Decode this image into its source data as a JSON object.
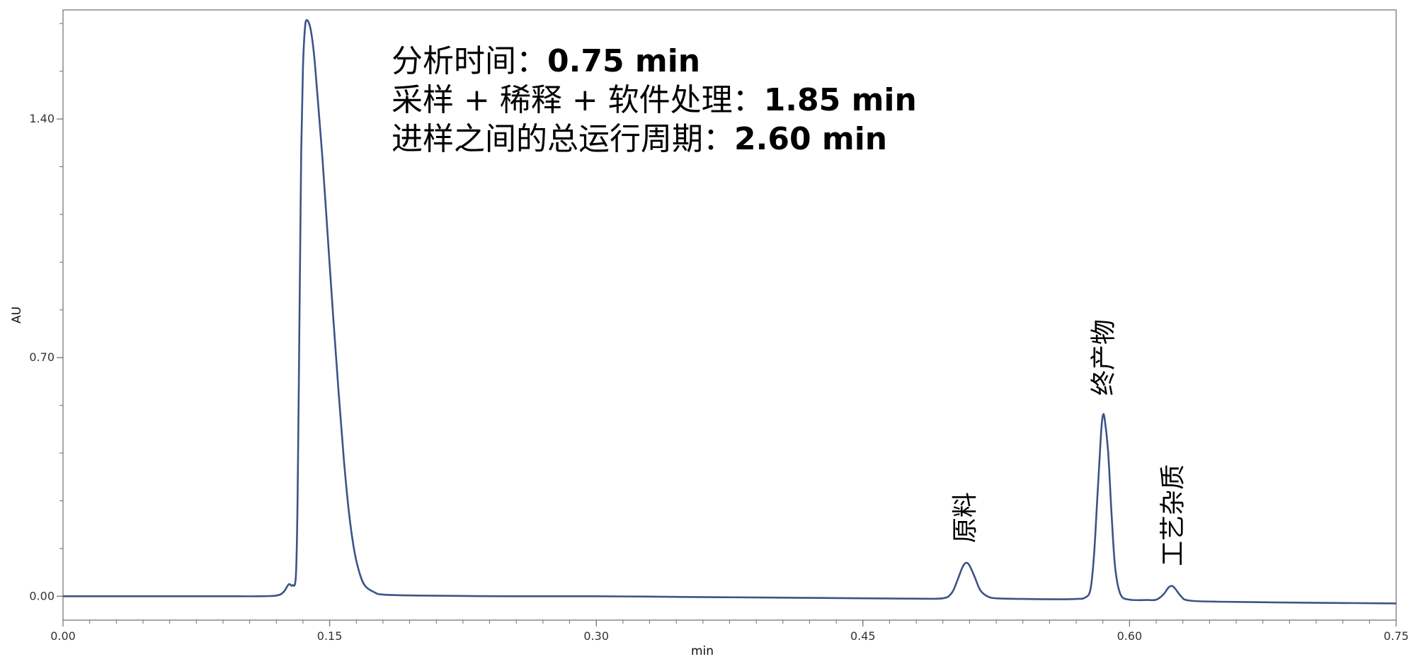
{
  "chart_data": {
    "type": "line",
    "title": "",
    "xlabel": "min",
    "ylabel": "AU",
    "xlim": [
      0.0,
      0.75
    ],
    "ylim": [
      -0.07,
      1.72
    ],
    "x_ticks": [
      0.0,
      0.15,
      0.3,
      0.45,
      0.6,
      0.75
    ],
    "x_tick_labels": [
      "0.00",
      "0.15",
      "0.30",
      "0.45",
      "0.60",
      "0.75"
    ],
    "y_ticks": [
      0.0,
      0.7,
      1.4
    ],
    "y_tick_labels": [
      "0.00",
      "0.70",
      "1.40"
    ],
    "grid": false,
    "series": [
      {
        "color": "#3b5488",
        "points": [
          [
            0.0,
            0.0
          ],
          [
            0.03,
            0.0
          ],
          [
            0.06,
            0.0
          ],
          [
            0.09,
            0.0
          ],
          [
            0.11,
            0.0
          ],
          [
            0.12,
            0.002
          ],
          [
            0.124,
            0.012
          ],
          [
            0.127,
            0.035
          ],
          [
            0.129,
            0.032
          ],
          [
            0.131,
            0.06
          ],
          [
            0.132,
            0.3
          ],
          [
            0.133,
            0.8
          ],
          [
            0.134,
            1.3
          ],
          [
            0.135,
            1.55
          ],
          [
            0.136,
            1.66
          ],
          [
            0.137,
            1.69
          ],
          [
            0.139,
            1.67
          ],
          [
            0.141,
            1.6
          ],
          [
            0.143,
            1.48
          ],
          [
            0.146,
            1.28
          ],
          [
            0.149,
            1.05
          ],
          [
            0.152,
            0.82
          ],
          [
            0.155,
            0.6
          ],
          [
            0.158,
            0.4
          ],
          [
            0.161,
            0.24
          ],
          [
            0.164,
            0.13
          ],
          [
            0.167,
            0.065
          ],
          [
            0.17,
            0.03
          ],
          [
            0.175,
            0.012
          ],
          [
            0.18,
            0.005
          ],
          [
            0.2,
            0.002
          ],
          [
            0.25,
            0.0
          ],
          [
            0.3,
            0.0
          ],
          [
            0.35,
            -0.002
          ],
          [
            0.4,
            -0.004
          ],
          [
            0.45,
            -0.006
          ],
          [
            0.48,
            -0.007
          ],
          [
            0.495,
            -0.006
          ],
          [
            0.5,
            0.01
          ],
          [
            0.503,
            0.045
          ],
          [
            0.506,
            0.085
          ],
          [
            0.508,
            0.098
          ],
          [
            0.51,
            0.09
          ],
          [
            0.513,
            0.055
          ],
          [
            0.516,
            0.018
          ],
          [
            0.52,
            0.0
          ],
          [
            0.525,
            -0.006
          ],
          [
            0.54,
            -0.008
          ],
          [
            0.56,
            -0.009
          ],
          [
            0.57,
            -0.008
          ],
          [
            0.575,
            -0.004
          ],
          [
            0.578,
            0.02
          ],
          [
            0.58,
            0.12
          ],
          [
            0.582,
            0.3
          ],
          [
            0.584,
            0.48
          ],
          [
            0.585,
            0.53
          ],
          [
            0.586,
            0.52
          ],
          [
            0.588,
            0.42
          ],
          [
            0.59,
            0.23
          ],
          [
            0.592,
            0.08
          ],
          [
            0.595,
            0.005
          ],
          [
            0.6,
            -0.01
          ],
          [
            0.61,
            -0.011
          ],
          [
            0.615,
            -0.01
          ],
          [
            0.619,
            0.005
          ],
          [
            0.622,
            0.026
          ],
          [
            0.624,
            0.03
          ],
          [
            0.626,
            0.02
          ],
          [
            0.629,
            0.0
          ],
          [
            0.633,
            -0.012
          ],
          [
            0.65,
            -0.016
          ],
          [
            0.7,
            -0.019
          ],
          [
            0.75,
            -0.021
          ]
        ]
      }
    ],
    "annotations": {
      "analysis_time_label": "分析时间：",
      "analysis_time_value": "0.75 min",
      "sampling_label": "采样 + 稀释 + 软件处理：",
      "sampling_value": "1.85 min",
      "cycle_label": "进样之间的总运行周期：",
      "cycle_value": "2.60 min"
    },
    "peak_labels": [
      {
        "text": "原料",
        "x": 0.507,
        "y": 0.098
      },
      {
        "text": "终产物",
        "x": 0.585,
        "y": 0.53
      },
      {
        "text": "工艺杂质",
        "x": 0.624,
        "y": 0.03
      }
    ]
  }
}
